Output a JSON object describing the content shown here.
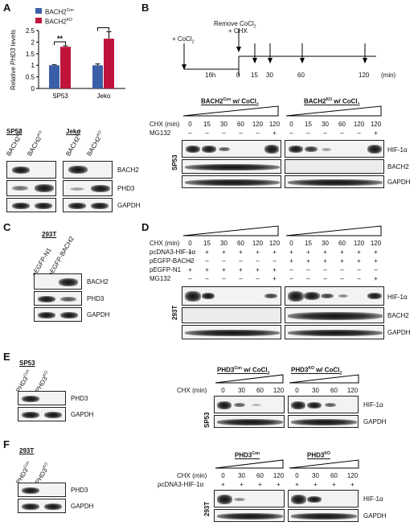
{
  "panels": {
    "A": "A",
    "B": "B",
    "C": "C",
    "D": "D",
    "E": "E",
    "F": "F"
  },
  "panelA": {
    "legend": [
      {
        "label_base": "BACH2",
        "label_sup": "Con",
        "color": "#3b5ea8"
      },
      {
        "label_base": "BACH2",
        "label_sup": "KO",
        "color": "#c0143c"
      }
    ],
    "ylabel_pre": "Relative ",
    "ylabel_ital": "PHD3",
    "ylabel_post": " levels",
    "sig": "**",
    "blot_groups": [
      "SP53",
      "Jeko"
    ],
    "lane_labels": [
      {
        "base": "BACH2",
        "sup": "Con"
      },
      {
        "base": "BACH2",
        "sup": "KO"
      },
      {
        "base": "BACH2",
        "sup": "Con"
      },
      {
        "base": "BACH2",
        "sup": "KO"
      }
    ],
    "rows": [
      "BACH2",
      "PHD3",
      "GAPDH"
    ]
  },
  "chart_data": {
    "type": "bar",
    "categories": [
      "SP53",
      "Jeko"
    ],
    "series": [
      {
        "name": "BACH2Con",
        "values": [
          1.0,
          1.0
        ],
        "errors": [
          0.03,
          0.06
        ]
      },
      {
        "name": "BACH2KO",
        "values": [
          1.8,
          2.15
        ],
        "errors": [
          0.04,
          0.3
        ]
      }
    ],
    "ylim": [
      0,
      2.5
    ],
    "yticks": [
      "0",
      "0.5",
      "1",
      "1.5",
      "2",
      "2.5"
    ],
    "ylabel": "Relative PHD3 levels"
  },
  "panelB": {
    "timeline": {
      "add": "+ CoCl",
      "add_sub": "2",
      "remove": "Remove CoCl",
      "remove_sub": "2",
      "chx": "+ CHX",
      "duration": "16h",
      "times": [
        "0",
        "15",
        "30",
        "60",
        "120"
      ],
      "unit": "(min)"
    },
    "group1": {
      "base": "BACH2",
      "sup": "Con",
      "suffix": " w/ CoCl",
      "sub": "2"
    },
    "group2": {
      "base": "BACH2",
      "sup": "KO",
      "suffix": " w/ CoCl",
      "sub": "2"
    },
    "chx_label": "CHX (min)",
    "chx_values": [
      "0",
      "15",
      "30",
      "60",
      "120",
      "120",
      "0",
      "15",
      "30",
      "60",
      "120",
      "120"
    ],
    "mg_label": "MG132",
    "mg_values": [
      "–",
      "–",
      "–",
      "–",
      "–",
      "+",
      "–",
      "–",
      "–",
      "–",
      "–",
      "+"
    ],
    "cell": "SP53",
    "rows": [
      "HIF-1α",
      "BACH2",
      "GAPDH"
    ]
  },
  "panelC": {
    "cell": "293T",
    "lanes": [
      "pEGFP-N1",
      "pEGFP-BACH2"
    ],
    "rows": [
      "BACH2",
      "PHD3",
      "GAPDH"
    ]
  },
  "panelD": {
    "chx_label": "CHX (min)",
    "chx_values": [
      "0",
      "15",
      "30",
      "60",
      "120",
      "120",
      "0",
      "15",
      "30",
      "60",
      "120",
      "120"
    ],
    "row_labels": [
      "pcDNA3-HIF-1α",
      "pEGFP-BACH2",
      "pEGFP-N1",
      "MG132"
    ],
    "row_values": [
      [
        "+",
        "+",
        "+",
        "+",
        "+",
        "+",
        "+",
        "+",
        "+",
        "+",
        "+",
        "+"
      ],
      [
        "–",
        "–",
        "–",
        "–",
        "–",
        "–",
        "+",
        "+",
        "+",
        "+",
        "+",
        "+"
      ],
      [
        "+",
        "+",
        "+",
        "+",
        "+",
        "+",
        "–",
        "–",
        "–",
        "–",
        "–",
        "–"
      ],
      [
        "–",
        "–",
        "–",
        "–",
        "–",
        "+",
        "–",
        "–",
        "–",
        "–",
        "–",
        "+"
      ]
    ],
    "cell": "293T",
    "rows": [
      "HIF-1α",
      "BACH2",
      "GAPDH"
    ]
  },
  "panelE": {
    "cell": "SP53",
    "lanes": [
      {
        "base": "PHD3",
        "sup": "Con"
      },
      {
        "base": "PHD3",
        "sup": "KO"
      }
    ],
    "left_rows": [
      "PHD3",
      "GAPDH"
    ],
    "group1": {
      "base": "PHD3",
      "sup": "Con",
      "suffix": " w/ CoCl",
      "sub": "2"
    },
    "group2": {
      "base": "PHD3",
      "sup": "KO",
      "suffix": " w/ CoCl",
      "sub": "2"
    },
    "chx_label": "CHX (min)",
    "chx_values": [
      "0",
      "30",
      "60",
      "120",
      "0",
      "30",
      "60",
      "120"
    ],
    "right_cell": "SP53",
    "right_rows": [
      "HIF-1α",
      "GAPDH"
    ]
  },
  "panelF": {
    "cell": "293T",
    "lanes": [
      {
        "base": "PHD3",
        "sup": "Con"
      },
      {
        "base": "PHD3",
        "sup": "KO"
      }
    ],
    "left_rows": [
      "PHD3",
      "GAPDH"
    ],
    "group1": {
      "base": "PHD3",
      "sup": "Con"
    },
    "group2": {
      "base": "PHD3",
      "sup": "KO"
    },
    "chx_label": "CHX (min)",
    "chx_values": [
      "0",
      "30",
      "60",
      "120",
      "0",
      "30",
      "60",
      "120"
    ],
    "plasmid_label": "pcDNA3-HIF-1α",
    "plasmid_values": [
      "+",
      "+",
      "+",
      "+",
      "+",
      "+",
      "+",
      "+"
    ],
    "right_cell": "293T",
    "right_rows": [
      "HIF-1α",
      "GAPDH"
    ]
  }
}
